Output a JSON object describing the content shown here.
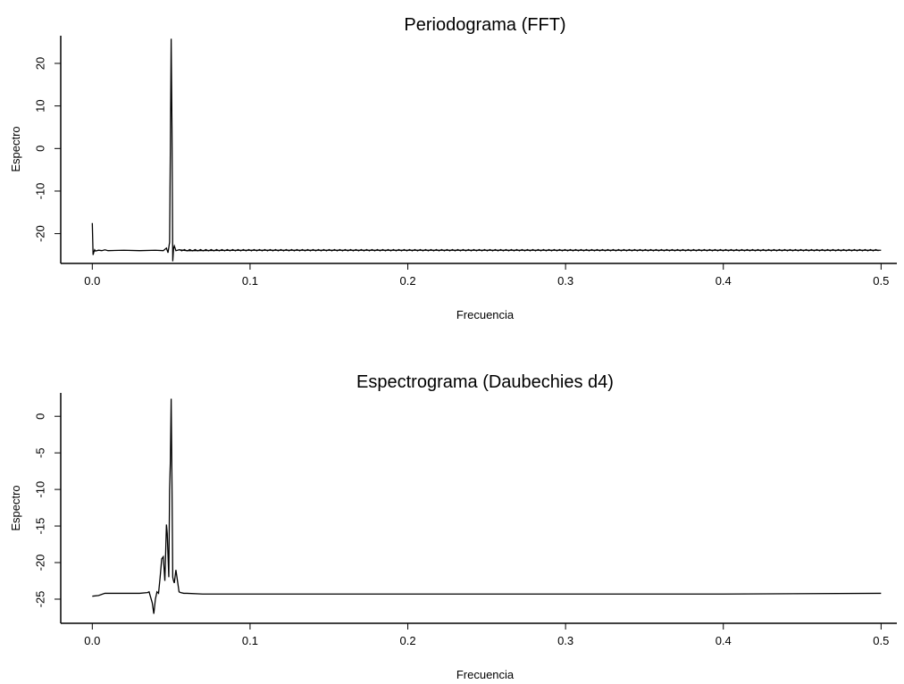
{
  "chart_data": [
    {
      "type": "line",
      "title": "Periodograma (FFT)",
      "xlabel": "Frecuencia",
      "ylabel": "Espectro",
      "xlim": [
        -0.02,
        0.51
      ],
      "ylim": [
        -27,
        26.5
      ],
      "x_ticks": [
        0.0,
        0.1,
        0.2,
        0.3,
        0.4,
        0.5
      ],
      "x_tick_labels": [
        "0.0",
        "0.1",
        "0.2",
        "0.3",
        "0.4",
        "0.5"
      ],
      "y_ticks": [
        -20,
        -10,
        0,
        10,
        20
      ],
      "y_tick_labels": [
        "-20",
        "-10",
        "0",
        "10",
        "20"
      ],
      "grid": false,
      "series": [
        {
          "x": [
            0.0,
            0.0005,
            0.001,
            0.0015,
            0.002,
            0.004,
            0.006,
            0.008,
            0.01,
            0.02,
            0.03,
            0.04,
            0.045,
            0.047,
            0.048,
            0.049,
            0.0495,
            0.05,
            0.0505,
            0.051,
            0.0515,
            0.052,
            0.053,
            0.055,
            0.06,
            0.1,
            0.2,
            0.3,
            0.4,
            0.5
          ],
          "y": [
            -17.5,
            -25.0,
            -24.3,
            -23.8,
            -24.1,
            -23.9,
            -24.0,
            -23.8,
            -24.0,
            -23.9,
            -24.0,
            -23.9,
            -24.0,
            -23.4,
            -24.5,
            -22.0,
            1.0,
            25.8,
            5.0,
            -26.5,
            -23.5,
            -22.9,
            -24.0,
            -23.8,
            -24.0,
            -23.9,
            -23.9,
            -23.9,
            -23.9,
            -23.9
          ]
        }
      ]
    },
    {
      "type": "line",
      "title": "Espectrograma (Daubechies d4)",
      "xlabel": "Frecuencia",
      "ylabel": "Espectro",
      "xlim": [
        -0.02,
        0.51
      ],
      "ylim": [
        -28.3,
        3.2
      ],
      "x_ticks": [
        0.0,
        0.1,
        0.2,
        0.3,
        0.4,
        0.5
      ],
      "x_tick_labels": [
        "0.0",
        "0.1",
        "0.2",
        "0.3",
        "0.4",
        "0.5"
      ],
      "y_ticks": [
        -25,
        -20,
        -15,
        -10,
        -5,
        0
      ],
      "y_tick_labels": [
        "-25",
        "-20",
        "-15",
        "-10",
        "-5",
        "0"
      ],
      "grid": false,
      "series": [
        {
          "x": [
            0.0,
            0.004,
            0.008,
            0.01,
            0.02,
            0.03,
            0.035,
            0.036,
            0.038,
            0.039,
            0.04,
            0.041,
            0.042,
            0.043,
            0.044,
            0.045,
            0.046,
            0.047,
            0.0475,
            0.048,
            0.0485,
            0.049,
            0.0495,
            0.05,
            0.0505,
            0.051,
            0.0515,
            0.052,
            0.053,
            0.054,
            0.055,
            0.056,
            0.058,
            0.06,
            0.07,
            0.1,
            0.2,
            0.3,
            0.4,
            0.5
          ],
          "y": [
            -24.6,
            -24.5,
            -24.2,
            -24.2,
            -24.2,
            -24.2,
            -24.1,
            -24.0,
            -25.5,
            -27.0,
            -25.0,
            -24.0,
            -24.2,
            -22.0,
            -19.5,
            -19.2,
            -22.5,
            -14.8,
            -16.0,
            -19.0,
            -22.0,
            -10.0,
            -6.0,
            2.4,
            -9.0,
            -22.0,
            -22.5,
            -22.8,
            -21.0,
            -22.5,
            -24.0,
            -24.1,
            -24.2,
            -24.2,
            -24.3,
            -24.3,
            -24.3,
            -24.3,
            -24.3,
            -24.2
          ]
        }
      ]
    }
  ]
}
